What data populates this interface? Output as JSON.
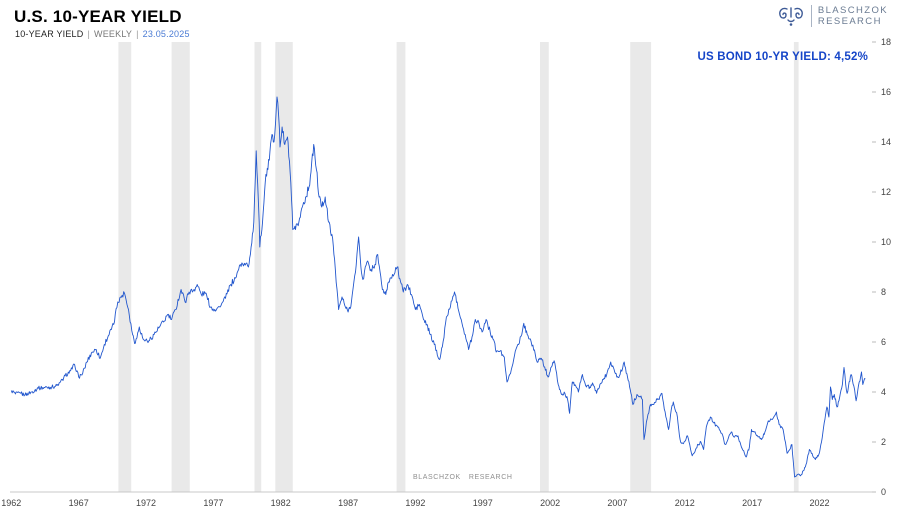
{
  "header": {
    "title": "U.S. 10-YEAR YIELD",
    "series_label": "10-YEAR YIELD",
    "separator": "|",
    "frequency": "WEEKLY",
    "date": "23.05.2025"
  },
  "logo": {
    "line1": "BLASCHZOK",
    "line2": "RESEARCH"
  },
  "annotation": {
    "text": "US BOND 10-YR YIELD: 4,52%",
    "color": "#1545c8"
  },
  "watermark": {
    "word1": "BLASCHZOK",
    "word2": "RESEARCH"
  },
  "chart_data": {
    "type": "line",
    "title": "U.S. 10-YEAR YIELD",
    "series_name": "US Bond 10-Year Yield (weekly close, %)",
    "line_color": "#2156cd",
    "band_color": "#e9e9e9",
    "x_range": [
      1961.9,
      2025.9
    ],
    "y_range": [
      0,
      18
    ],
    "y_ticks": [
      0,
      2,
      4,
      6,
      8,
      10,
      12,
      14,
      16,
      18
    ],
    "x_ticks": [
      1962,
      1967,
      1972,
      1977,
      1982,
      1987,
      1992,
      1997,
      2002,
      2007,
      2012,
      2017,
      2022
    ],
    "recessions": [
      [
        1969.95,
        1970.9
      ],
      [
        1973.9,
        1975.25
      ],
      [
        1980.05,
        1980.55
      ],
      [
        1981.6,
        1982.9
      ],
      [
        1990.6,
        1991.25
      ],
      [
        2001.25,
        2001.9
      ],
      [
        2007.95,
        2009.5
      ],
      [
        2020.1,
        2020.45
      ]
    ],
    "points": [
      [
        1962.0,
        4.06
      ],
      [
        1962.3,
        3.92
      ],
      [
        1962.7,
        3.95
      ],
      [
        1963.0,
        3.88
      ],
      [
        1963.5,
        4.0
      ],
      [
        1964.0,
        4.15
      ],
      [
        1964.5,
        4.18
      ],
      [
        1965.0,
        4.2
      ],
      [
        1965.5,
        4.27
      ],
      [
        1966.0,
        4.65
      ],
      [
        1966.4,
        4.85
      ],
      [
        1966.7,
        5.1
      ],
      [
        1967.0,
        4.6
      ],
      [
        1967.3,
        4.75
      ],
      [
        1967.6,
        5.2
      ],
      [
        1968.0,
        5.6
      ],
      [
        1968.3,
        5.7
      ],
      [
        1968.6,
        5.35
      ],
      [
        1968.9,
        5.9
      ],
      [
        1969.2,
        6.25
      ],
      [
        1969.6,
        6.7
      ],
      [
        1969.9,
        7.6
      ],
      [
        1970.1,
        7.8
      ],
      [
        1970.4,
        7.95
      ],
      [
        1970.7,
        7.3
      ],
      [
        1971.0,
        6.3
      ],
      [
        1971.2,
        5.95
      ],
      [
        1971.5,
        6.6
      ],
      [
        1971.8,
        6.1
      ],
      [
        1972.2,
        6.05
      ],
      [
        1972.6,
        6.3
      ],
      [
        1973.0,
        6.6
      ],
      [
        1973.3,
        6.8
      ],
      [
        1973.6,
        7.1
      ],
      [
        1973.9,
        6.9
      ],
      [
        1974.2,
        7.3
      ],
      [
        1974.6,
        8.1
      ],
      [
        1974.9,
        7.6
      ],
      [
        1975.2,
        8.0
      ],
      [
        1975.5,
        8.05
      ],
      [
        1975.8,
        8.3
      ],
      [
        1976.1,
        7.9
      ],
      [
        1976.4,
        7.95
      ],
      [
        1976.8,
        7.4
      ],
      [
        1977.1,
        7.3
      ],
      [
        1977.5,
        7.4
      ],
      [
        1977.9,
        7.75
      ],
      [
        1978.3,
        8.3
      ],
      [
        1978.7,
        8.6
      ],
      [
        1979.0,
        9.1
      ],
      [
        1979.3,
        9.15
      ],
      [
        1979.6,
        9.0
      ],
      [
        1979.8,
        9.8
      ],
      [
        1980.0,
        10.8
      ],
      [
        1980.18,
        13.65
      ],
      [
        1980.35,
        11.5
      ],
      [
        1980.45,
        9.8
      ],
      [
        1980.7,
        11.2
      ],
      [
        1980.9,
        12.7
      ],
      [
        1981.05,
        12.9
      ],
      [
        1981.2,
        13.6
      ],
      [
        1981.35,
        14.3
      ],
      [
        1981.5,
        14.0
      ],
      [
        1981.72,
        15.8
      ],
      [
        1981.85,
        15.0
      ],
      [
        1981.95,
        13.8
      ],
      [
        1982.1,
        14.6
      ],
      [
        1982.3,
        13.9
      ],
      [
        1982.5,
        14.2
      ],
      [
        1982.7,
        12.8
      ],
      [
        1982.9,
        10.5
      ],
      [
        1983.1,
        10.5
      ],
      [
        1983.35,
        10.8
      ],
      [
        1983.6,
        11.4
      ],
      [
        1983.85,
        11.8
      ],
      [
        1984.1,
        12.2
      ],
      [
        1984.25,
        12.8
      ],
      [
        1984.45,
        13.9
      ],
      [
        1984.65,
        12.9
      ],
      [
        1984.85,
        11.8
      ],
      [
        1985.05,
        11.4
      ],
      [
        1985.3,
        11.8
      ],
      [
        1985.55,
        10.8
      ],
      [
        1985.8,
        10.3
      ],
      [
        1986.0,
        9.3
      ],
      [
        1986.3,
        7.3
      ],
      [
        1986.55,
        7.8
      ],
      [
        1986.8,
        7.4
      ],
      [
        1987.0,
        7.2
      ],
      [
        1987.25,
        7.6
      ],
      [
        1987.55,
        8.8
      ],
      [
        1987.78,
        10.2
      ],
      [
        1987.95,
        9.0
      ],
      [
        1988.1,
        8.5
      ],
      [
        1988.4,
        9.2
      ],
      [
        1988.7,
        8.9
      ],
      [
        1989.0,
        9.1
      ],
      [
        1989.2,
        9.5
      ],
      [
        1989.55,
        8.1
      ],
      [
        1989.8,
        7.9
      ],
      [
        1990.0,
        8.4
      ],
      [
        1990.3,
        8.7
      ],
      [
        1990.65,
        9.0
      ],
      [
        1990.9,
        8.4
      ],
      [
        1991.1,
        8.0
      ],
      [
        1991.4,
        8.3
      ],
      [
        1991.7,
        7.9
      ],
      [
        1992.0,
        7.3
      ],
      [
        1992.3,
        7.5
      ],
      [
        1992.6,
        6.9
      ],
      [
        1992.85,
        6.7
      ],
      [
        1993.1,
        6.3
      ],
      [
        1993.4,
        5.9
      ],
      [
        1993.8,
        5.3
      ],
      [
        1994.0,
        5.8
      ],
      [
        1994.3,
        7.0
      ],
      [
        1994.6,
        7.4
      ],
      [
        1994.9,
        8.0
      ],
      [
        1995.1,
        7.6
      ],
      [
        1995.4,
        6.9
      ],
      [
        1995.7,
        6.3
      ],
      [
        1995.95,
        5.7
      ],
      [
        1996.2,
        6.2
      ],
      [
        1996.45,
        6.9
      ],
      [
        1996.7,
        6.8
      ],
      [
        1996.95,
        6.4
      ],
      [
        1997.25,
        6.9
      ],
      [
        1997.55,
        6.4
      ],
      [
        1997.8,
        6.1
      ],
      [
        1998.0,
        5.6
      ],
      [
        1998.3,
        5.65
      ],
      [
        1998.6,
        5.4
      ],
      [
        1998.8,
        4.4
      ],
      [
        1999.0,
        4.7
      ],
      [
        1999.3,
        5.3
      ],
      [
        1999.6,
        5.9
      ],
      [
        1999.9,
        6.3
      ],
      [
        2000.05,
        6.75
      ],
      [
        2000.3,
        6.3
      ],
      [
        2000.6,
        6.0
      ],
      [
        2000.9,
        5.5
      ],
      [
        2001.1,
        5.2
      ],
      [
        2001.35,
        5.35
      ],
      [
        2001.6,
        5.0
      ],
      [
        2001.85,
        4.6
      ],
      [
        2002.1,
        5.0
      ],
      [
        2002.3,
        5.25
      ],
      [
        2002.6,
        4.3
      ],
      [
        2002.85,
        3.9
      ],
      [
        2003.1,
        3.95
      ],
      [
        2003.3,
        3.7
      ],
      [
        2003.45,
        3.15
      ],
      [
        2003.65,
        4.4
      ],
      [
        2003.9,
        4.25
      ],
      [
        2004.1,
        4.0
      ],
      [
        2004.4,
        4.7
      ],
      [
        2004.7,
        4.2
      ],
      [
        2004.95,
        4.2
      ],
      [
        2005.2,
        4.3
      ],
      [
        2005.45,
        3.95
      ],
      [
        2005.7,
        4.3
      ],
      [
        2005.95,
        4.5
      ],
      [
        2006.2,
        4.7
      ],
      [
        2006.5,
        5.2
      ],
      [
        2006.75,
        4.9
      ],
      [
        2006.95,
        4.6
      ],
      [
        2007.2,
        4.7
      ],
      [
        2007.5,
        5.2
      ],
      [
        2007.75,
        4.6
      ],
      [
        2007.95,
        4.1
      ],
      [
        2008.15,
        3.5
      ],
      [
        2008.45,
        3.9
      ],
      [
        2008.7,
        3.8
      ],
      [
        2008.85,
        3.7
      ],
      [
        2008.97,
        2.1
      ],
      [
        2009.15,
        2.8
      ],
      [
        2009.45,
        3.5
      ],
      [
        2009.7,
        3.5
      ],
      [
        2009.95,
        3.7
      ],
      [
        2010.1,
        3.7
      ],
      [
        2010.3,
        3.95
      ],
      [
        2010.6,
        3.0
      ],
      [
        2010.8,
        2.5
      ],
      [
        2011.0,
        3.3
      ],
      [
        2011.15,
        3.6
      ],
      [
        2011.45,
        3.0
      ],
      [
        2011.65,
        2.1
      ],
      [
        2011.75,
        1.95
      ],
      [
        2011.95,
        2.0
      ],
      [
        2012.2,
        2.25
      ],
      [
        2012.55,
        1.45
      ],
      [
        2012.8,
        1.7
      ],
      [
        2013.0,
        1.9
      ],
      [
        2013.2,
        2.0
      ],
      [
        2013.4,
        1.7
      ],
      [
        2013.6,
        2.6
      ],
      [
        2013.9,
        3.0
      ],
      [
        2014.1,
        2.8
      ],
      [
        2014.45,
        2.6
      ],
      [
        2014.75,
        2.35
      ],
      [
        2015.0,
        1.9
      ],
      [
        2015.2,
        2.1
      ],
      [
        2015.45,
        2.4
      ],
      [
        2015.7,
        2.2
      ],
      [
        2015.95,
        2.25
      ],
      [
        2016.2,
        1.8
      ],
      [
        2016.55,
        1.4
      ],
      [
        2016.8,
        1.8
      ],
      [
        2016.95,
        2.5
      ],
      [
        2017.15,
        2.4
      ],
      [
        2017.45,
        2.2
      ],
      [
        2017.7,
        2.1
      ],
      [
        2017.95,
        2.4
      ],
      [
        2018.2,
        2.85
      ],
      [
        2018.5,
        2.9
      ],
      [
        2018.8,
        3.2
      ],
      [
        2019.0,
        2.7
      ],
      [
        2019.3,
        2.5
      ],
      [
        2019.6,
        1.55
      ],
      [
        2019.8,
        1.7
      ],
      [
        2019.95,
        1.9
      ],
      [
        2020.15,
        0.6
      ],
      [
        2020.35,
        0.7
      ],
      [
        2020.6,
        0.65
      ],
      [
        2020.8,
        0.85
      ],
      [
        2021.0,
        1.1
      ],
      [
        2021.25,
        1.7
      ],
      [
        2021.5,
        1.45
      ],
      [
        2021.7,
        1.3
      ],
      [
        2021.95,
        1.5
      ],
      [
        2022.15,
        2.0
      ],
      [
        2022.4,
        2.9
      ],
      [
        2022.55,
        3.4
      ],
      [
        2022.7,
        3.0
      ],
      [
        2022.82,
        4.2
      ],
      [
        2022.95,
        3.7
      ],
      [
        2023.1,
        3.9
      ],
      [
        2023.3,
        3.4
      ],
      [
        2023.5,
        3.8
      ],
      [
        2023.7,
        4.3
      ],
      [
        2023.82,
        4.98
      ],
      [
        2023.95,
        4.3
      ],
      [
        2024.05,
        3.95
      ],
      [
        2024.15,
        4.2
      ],
      [
        2024.35,
        4.7
      ],
      [
        2024.55,
        4.25
      ],
      [
        2024.72,
        3.65
      ],
      [
        2024.85,
        4.1
      ],
      [
        2024.95,
        4.4
      ],
      [
        2025.05,
        4.6
      ],
      [
        2025.12,
        4.8
      ],
      [
        2025.22,
        4.3
      ],
      [
        2025.3,
        4.45
      ],
      [
        2025.4,
        4.52
      ]
    ]
  }
}
